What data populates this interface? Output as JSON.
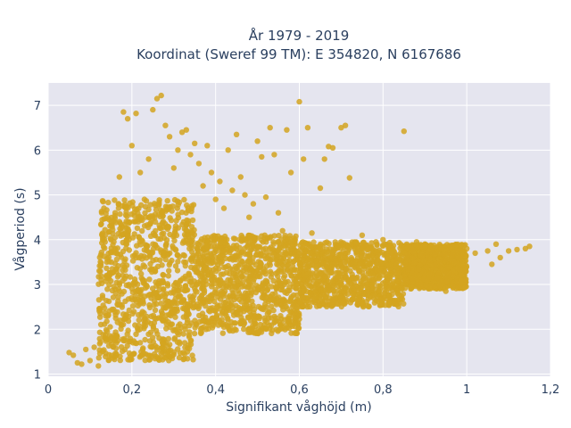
{
  "chart_data": {
    "type": "scatter",
    "title_line1": "År 1979 - 2019",
    "title_line2": "Koordinat (Sweref 99 TM): E 354820, N 6167686",
    "xlabel": "Signifikant våghöjd (m)",
    "ylabel": "Vågperiod (s)",
    "xlim": [
      0,
      1.2
    ],
    "ylim": [
      0.95,
      7.5
    ],
    "x_ticks": [
      0,
      0.2,
      0.4,
      0.6,
      0.8,
      1,
      1.2
    ],
    "x_tick_labels": [
      "0",
      "0,2",
      "0,4",
      "0,6",
      "0,8",
      "1",
      "1,2"
    ],
    "y_ticks": [
      1,
      2,
      3,
      4,
      5,
      6,
      7
    ],
    "y_tick_labels": [
      "1",
      "2",
      "3",
      "4",
      "5",
      "6",
      "7"
    ],
    "grid": true,
    "marker_color": "#d4a520",
    "plot_bg": "#e5e5ef",
    "points": [
      [
        0.05,
        1.48
      ],
      [
        0.06,
        1.42
      ],
      [
        0.07,
        1.25
      ],
      [
        0.08,
        1.22
      ],
      [
        0.09,
        1.55
      ],
      [
        0.1,
        1.3
      ],
      [
        0.11,
        1.6
      ],
      [
        0.12,
        1.18
      ],
      [
        0.13,
        2.7
      ],
      [
        0.14,
        3.5
      ],
      [
        0.15,
        4.0
      ],
      [
        0.16,
        4.6
      ],
      [
        0.17,
        5.4
      ],
      [
        0.18,
        6.85
      ],
      [
        0.19,
        6.7
      ],
      [
        0.2,
        6.1
      ],
      [
        0.21,
        6.82
      ],
      [
        0.22,
        5.5
      ],
      [
        0.23,
        4.9
      ],
      [
        0.24,
        5.8
      ],
      [
        0.25,
        6.9
      ],
      [
        0.26,
        7.15
      ],
      [
        0.27,
        7.22
      ],
      [
        0.28,
        6.55
      ],
      [
        0.29,
        6.3
      ],
      [
        0.3,
        5.6
      ],
      [
        0.31,
        6.0
      ],
      [
        0.32,
        6.4
      ],
      [
        0.33,
        6.45
      ],
      [
        0.34,
        5.9
      ],
      [
        0.35,
        6.15
      ],
      [
        0.36,
        5.7
      ],
      [
        0.37,
        5.2
      ],
      [
        0.38,
        6.1
      ],
      [
        0.39,
        5.5
      ],
      [
        0.4,
        4.9
      ],
      [
        0.41,
        5.3
      ],
      [
        0.42,
        4.7
      ],
      [
        0.43,
        6.0
      ],
      [
        0.44,
        5.1
      ],
      [
        0.45,
        6.35
      ],
      [
        0.46,
        5.4
      ],
      [
        0.47,
        5.0
      ],
      [
        0.48,
        4.5
      ],
      [
        0.49,
        4.8
      ],
      [
        0.5,
        6.2
      ],
      [
        0.51,
        5.85
      ],
      [
        0.52,
        4.95
      ],
      [
        0.53,
        6.5
      ],
      [
        0.54,
        5.9
      ],
      [
        0.55,
        4.6
      ],
      [
        0.56,
        4.2
      ],
      [
        0.57,
        6.45
      ],
      [
        0.58,
        5.5
      ],
      [
        0.59,
        4.0
      ],
      [
        0.6,
        7.08
      ],
      [
        0.61,
        5.8
      ],
      [
        0.62,
        6.5
      ],
      [
        0.63,
        4.15
      ],
      [
        0.65,
        5.15
      ],
      [
        0.66,
        5.8
      ],
      [
        0.67,
        6.08
      ],
      [
        0.68,
        6.05
      ],
      [
        0.7,
        6.5
      ],
      [
        0.71,
        6.55
      ],
      [
        0.72,
        5.38
      ],
      [
        0.75,
        4.1
      ],
      [
        0.8,
        4.0
      ],
      [
        0.85,
        6.42
      ],
      [
        0.88,
        3.95
      ],
      [
        0.9,
        3.9
      ],
      [
        0.93,
        3.15
      ],
      [
        0.95,
        2.85
      ],
      [
        0.98,
        3.6
      ],
      [
        1.0,
        3.8
      ],
      [
        1.02,
        3.7
      ],
      [
        1.05,
        3.75
      ],
      [
        1.06,
        3.45
      ],
      [
        1.07,
        3.9
      ],
      [
        1.08,
        3.6
      ],
      [
        1.1,
        3.75
      ],
      [
        1.12,
        3.78
      ],
      [
        1.14,
        3.8
      ],
      [
        1.15,
        3.85
      ]
    ],
    "dense_regions": [
      {
        "x": [
          0.12,
          0.35
        ],
        "y_low": 1.3,
        "y_high": 4.9
      },
      {
        "x": [
          0.35,
          0.6
        ],
        "y_low": 1.9,
        "y_high": 4.1
      },
      {
        "x": [
          0.6,
          0.85
        ],
        "y_low": 2.5,
        "y_high": 3.95
      },
      {
        "x": [
          0.85,
          1.0
        ],
        "y_low": 2.9,
        "y_high": 3.9
      }
    ]
  }
}
